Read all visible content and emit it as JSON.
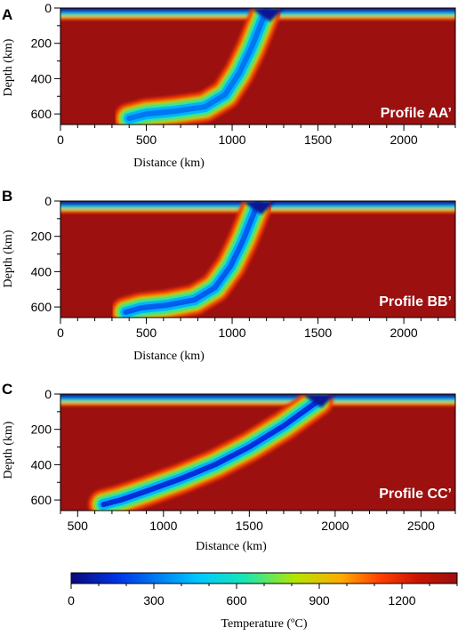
{
  "chart_data": [
    {
      "type": "heatmap",
      "panel": "A",
      "annotation": "Profile AA’",
      "xlabel": "Distance (km)",
      "ylabel": "Depth (km)",
      "xlim": [
        0,
        2300
      ],
      "ylim": [
        660,
        0
      ],
      "xticks": [
        0,
        500,
        1000,
        1500,
        2000
      ],
      "yticks": [
        0,
        200,
        400,
        600
      ],
      "lithosphere_base_depth_km": 70,
      "slab_centerline": {
        "x": [
          1200,
          1160,
          1110,
          1040,
          960,
          840,
          660,
          500,
          400
        ],
        "y": [
          10,
          110,
          230,
          370,
          490,
          560,
          585,
          600,
          625
        ]
      },
      "slab_core_temperature_C": 300,
      "mantle_temperature_C": 1400
    },
    {
      "type": "heatmap",
      "panel": "B",
      "annotation": "Profile BB’",
      "xlabel": "Distance (km)",
      "ylabel": "Depth (km)",
      "xlim": [
        0,
        2300
      ],
      "ylim": [
        660,
        0
      ],
      "xticks": [
        0,
        500,
        1000,
        1500,
        2000
      ],
      "yticks": [
        0,
        200,
        400,
        600
      ],
      "lithosphere_base_depth_km": 70,
      "slab_centerline": {
        "x": [
          1150,
          1110,
          1060,
          990,
          900,
          780,
          620,
          470,
          380
        ],
        "y": [
          10,
          110,
          230,
          370,
          490,
          560,
          590,
          605,
          630
        ]
      },
      "slab_core_temperature_C": 250,
      "mantle_temperature_C": 1400
    },
    {
      "type": "heatmap",
      "panel": "C",
      "annotation": "Profile CC’",
      "xlabel": "Distance (km)",
      "ylabel": "Depth (km)",
      "xlim": [
        400,
        2700
      ],
      "ylim": [
        660,
        0
      ],
      "xticks": [
        500,
        1000,
        1500,
        2000,
        2500
      ],
      "yticks": [
        0,
        200,
        400,
        600
      ],
      "lithosphere_base_depth_km": 70,
      "slab_centerline": {
        "x": [
          1900,
          1700,
          1500,
          1300,
          1100,
          900,
          750,
          650
        ],
        "y": [
          40,
          180,
          300,
          400,
          480,
          550,
          600,
          625
        ]
      },
      "slab_core_temperature_C": 150,
      "mantle_temperature_C": 1400
    }
  ],
  "colorbar": {
    "label": "Temperature (ºC)",
    "range": [
      0,
      1400
    ],
    "ticks": [
      0,
      300,
      600,
      900,
      1200
    ],
    "colors": [
      "#0a0a78",
      "#0033e6",
      "#00c8ff",
      "#19e6b4",
      "#b4e600",
      "#ffaa00",
      "#ff4000",
      "#c81400",
      "#9c1010"
    ]
  }
}
